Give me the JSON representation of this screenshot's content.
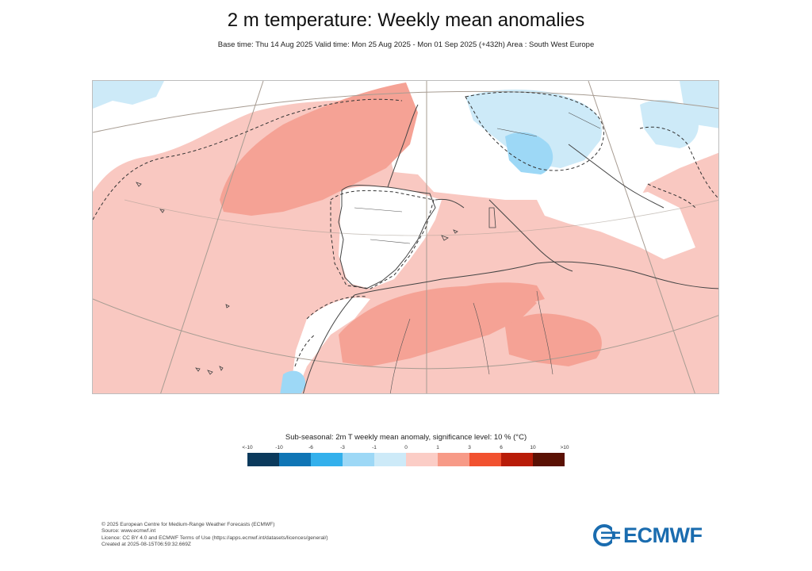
{
  "title": "2 m temperature: Weekly mean anomalies",
  "subtitle": "Base time: Thu 14 Aug 2025 Valid time: Mon 25 Aug 2025 - Mon 01 Sep 2025 (+432h) Area : South West Europe",
  "legend": {
    "title": "Sub-seasonal: 2m T weekly mean anomaly, significance level: 10 % (°C)",
    "ticks": [
      "<-10",
      "-10",
      "-6",
      "-3",
      "-1",
      "0",
      "1",
      "3",
      "6",
      "10",
      ">10"
    ],
    "colors": [
      "#0b3a5c",
      "#0f75b5",
      "#33b0ec",
      "#9dd8f6",
      "#cdeaf8",
      "#fbcdc6",
      "#f79a87",
      "#f1512f",
      "#b81c08",
      "#5a1104"
    ]
  },
  "map": {
    "area": "South West Europe",
    "colors": {
      "weak_warm": "#f9c8c1",
      "warm": "#f5a295",
      "neutral": "#ffffff",
      "weak_cold": "#cdeaf8",
      "cold": "#9dd8f6"
    }
  },
  "footer": {
    "lines": [
      "© 2025 European Centre for Medium-Range Weather Forecasts (ECMWF)",
      "Source: www.ecmwf.int",
      "Licence: CC BY 4.0 and ECMWF Terms of Use (https://apps.ecmwf.int/datasets/licences/general/)",
      "Created at 2025-08-15T06:59:32.669Z"
    ]
  },
  "logo": {
    "text": "ECMWF",
    "color": "#1a6caf"
  }
}
